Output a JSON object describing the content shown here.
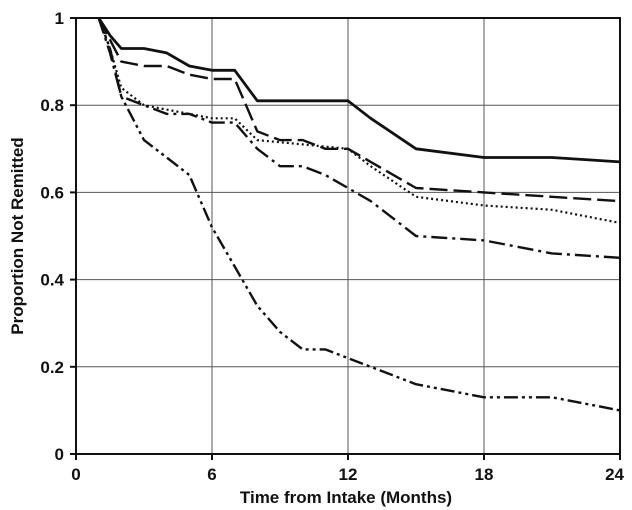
{
  "chart_data": {
    "type": "line",
    "title": "",
    "xlabel": "Time from Intake (Months)",
    "ylabel": "Proportion Not Remitted",
    "xlim": [
      0,
      24
    ],
    "ylim": [
      0,
      1
    ],
    "x_ticks": [
      0,
      6,
      12,
      18,
      24
    ],
    "x_tick_labels": [
      "0",
      "6",
      "12",
      "18",
      "24"
    ],
    "y_ticks": [
      0,
      0.2,
      0.4,
      0.6,
      0.8,
      1
    ],
    "y_tick_labels": [
      "0",
      "0.2",
      "0.4",
      "0.6",
      "0.8",
      "1"
    ],
    "grid": true,
    "legend": "none",
    "series": [
      {
        "style": "solid",
        "points": [
          [
            1,
            1
          ],
          [
            1.5,
            0.96
          ],
          [
            2,
            0.93
          ],
          [
            3,
            0.93
          ],
          [
            4,
            0.92
          ],
          [
            5,
            0.89
          ],
          [
            6,
            0.88
          ],
          [
            7,
            0.88
          ],
          [
            8,
            0.81
          ],
          [
            12,
            0.81
          ],
          [
            13,
            0.77
          ],
          [
            15,
            0.7
          ],
          [
            18,
            0.68
          ],
          [
            21,
            0.68
          ],
          [
            24,
            0.67
          ]
        ]
      },
      {
        "style": "long-dash",
        "points": [
          [
            1,
            1
          ],
          [
            1.5,
            0.95
          ],
          [
            2,
            0.9
          ],
          [
            3,
            0.89
          ],
          [
            4,
            0.89
          ],
          [
            5,
            0.87
          ],
          [
            6,
            0.86
          ],
          [
            7,
            0.86
          ],
          [
            8,
            0.74
          ],
          [
            9,
            0.72
          ],
          [
            10,
            0.72
          ],
          [
            11,
            0.7
          ],
          [
            12,
            0.7
          ],
          [
            13,
            0.67
          ],
          [
            15,
            0.61
          ],
          [
            18,
            0.6
          ],
          [
            21,
            0.59
          ],
          [
            24,
            0.58
          ]
        ]
      },
      {
        "style": "dotted",
        "points": [
          [
            1,
            1
          ],
          [
            1.5,
            0.93
          ],
          [
            2,
            0.84
          ],
          [
            3,
            0.8
          ],
          [
            4,
            0.79
          ],
          [
            5,
            0.78
          ],
          [
            6,
            0.77
          ],
          [
            7,
            0.77
          ],
          [
            8,
            0.72
          ],
          [
            10,
            0.71
          ],
          [
            12,
            0.7
          ],
          [
            13,
            0.66
          ],
          [
            15,
            0.59
          ],
          [
            18,
            0.57
          ],
          [
            21,
            0.56
          ],
          [
            24,
            0.53
          ]
        ]
      },
      {
        "style": "dash-dot",
        "points": [
          [
            1,
            1
          ],
          [
            1.5,
            0.92
          ],
          [
            2,
            0.82
          ],
          [
            3,
            0.8
          ],
          [
            4,
            0.78
          ],
          [
            5,
            0.78
          ],
          [
            6,
            0.76
          ],
          [
            7,
            0.76
          ],
          [
            8,
            0.7
          ],
          [
            9,
            0.66
          ],
          [
            10,
            0.66
          ],
          [
            11,
            0.64
          ],
          [
            12,
            0.61
          ],
          [
            13,
            0.58
          ],
          [
            15,
            0.5
          ],
          [
            18,
            0.49
          ],
          [
            21,
            0.46
          ],
          [
            24,
            0.45
          ]
        ]
      },
      {
        "style": "dash-dot-dot",
        "points": [
          [
            1,
            1
          ],
          [
            1.5,
            0.93
          ],
          [
            2,
            0.82
          ],
          [
            3,
            0.72
          ],
          [
            4,
            0.68
          ],
          [
            5,
            0.64
          ],
          [
            6,
            0.52
          ],
          [
            7,
            0.43
          ],
          [
            8,
            0.34
          ],
          [
            9,
            0.28
          ],
          [
            10,
            0.24
          ],
          [
            11,
            0.24
          ],
          [
            12,
            0.22
          ],
          [
            13,
            0.2
          ],
          [
            15,
            0.16
          ],
          [
            18,
            0.13
          ],
          [
            19,
            0.13
          ],
          [
            21,
            0.13
          ],
          [
            24,
            0.1
          ]
        ]
      }
    ]
  }
}
